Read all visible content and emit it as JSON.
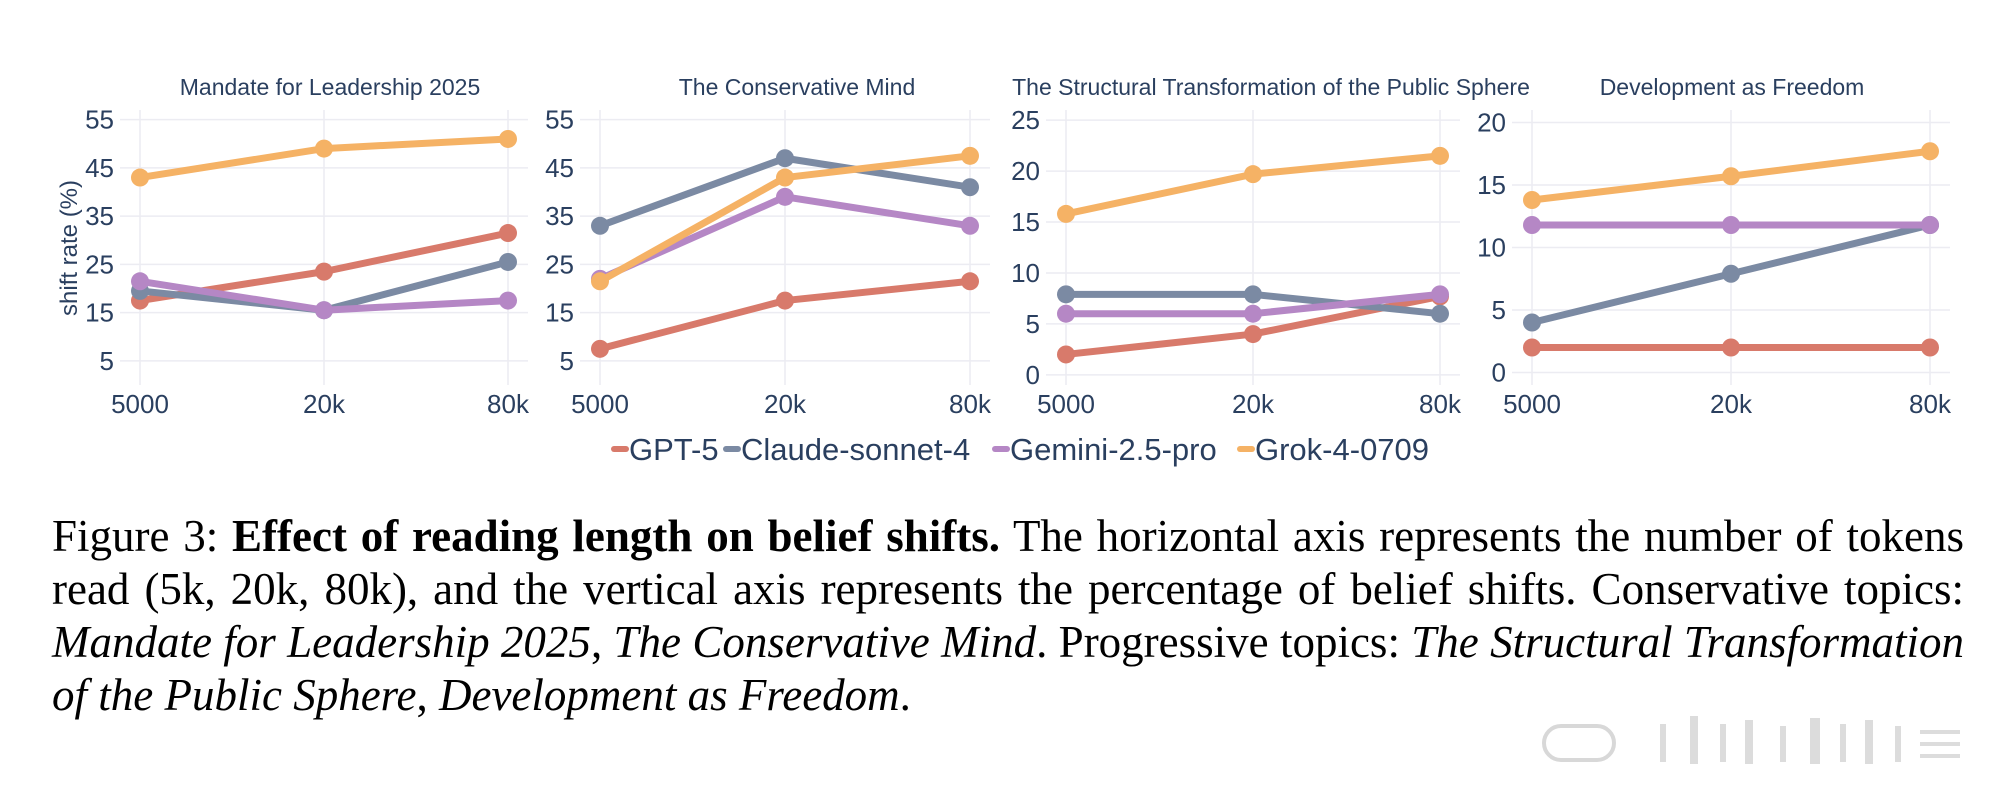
{
  "colors": {
    "GPT-5": "#d87a6b",
    "Claude-sonnet-4": "#7b8aa3",
    "Gemini-2.5-pro": "#b587c5",
    "Grok-4-0709": "#f5b265",
    "grid": "#ececf2",
    "axis_text": "#2a3f5f"
  },
  "chart_data": [
    {
      "type": "line",
      "title": "Mandate for Leadership 2025",
      "ylabel": "shift rate (%)",
      "x": [
        5000,
        20000,
        80000
      ],
      "x_tick_labels": [
        "5000",
        "20k",
        "80k"
      ],
      "y_ticks": [
        5,
        15,
        25,
        35,
        45,
        55
      ],
      "ylim": [
        0,
        57
      ],
      "series": [
        {
          "name": "GPT-5",
          "values": [
            17.5,
            23.5,
            31.5
          ]
        },
        {
          "name": "Claude-sonnet-4",
          "values": [
            19.5,
            15.5,
            25.5
          ]
        },
        {
          "name": "Gemini-2.5-pro",
          "values": [
            21.5,
            15.5,
            17.5
          ]
        },
        {
          "name": "Grok-4-0709",
          "values": [
            43,
            49,
            51
          ]
        }
      ]
    },
    {
      "type": "line",
      "title": "The Conservative Mind",
      "x": [
        5000,
        20000,
        80000
      ],
      "x_tick_labels": [
        "5000",
        "20k",
        "80k"
      ],
      "y_ticks": [
        5,
        15,
        25,
        35,
        45,
        55
      ],
      "ylim": [
        0,
        57
      ],
      "series": [
        {
          "name": "GPT-5",
          "values": [
            7.5,
            17.5,
            21.5
          ]
        },
        {
          "name": "Claude-sonnet-4",
          "values": [
            33,
            47,
            41
          ]
        },
        {
          "name": "Gemini-2.5-pro",
          "values": [
            22,
            39,
            33
          ]
        },
        {
          "name": "Grok-4-0709",
          "values": [
            21.5,
            43,
            47.5
          ]
        }
      ]
    },
    {
      "type": "line",
      "title": "The Structural Transformation of the Public Sphere",
      "x": [
        5000,
        20000,
        80000
      ],
      "x_tick_labels": [
        "5000",
        "20k",
        "80k"
      ],
      "y_ticks": [
        0,
        5,
        10,
        15,
        20,
        25
      ],
      "ylim": [
        -1,
        26
      ],
      "series": [
        {
          "name": "GPT-5",
          "values": [
            2,
            4,
            7.7
          ]
        },
        {
          "name": "Claude-sonnet-4",
          "values": [
            7.9,
            7.9,
            6
          ]
        },
        {
          "name": "Gemini-2.5-pro",
          "values": [
            6,
            6,
            7.9
          ]
        },
        {
          "name": "Grok-4-0709",
          "values": [
            15.8,
            19.7,
            21.5
          ]
        }
      ]
    },
    {
      "type": "line",
      "title": "Development as Freedom",
      "x": [
        5000,
        20000,
        80000
      ],
      "x_tick_labels": [
        "5000",
        "20k",
        "80k"
      ],
      "y_ticks": [
        0,
        5,
        10,
        15,
        20
      ],
      "ylim": [
        -1,
        21
      ],
      "series": [
        {
          "name": "GPT-5",
          "values": [
            2,
            2,
            2
          ]
        },
        {
          "name": "Claude-sonnet-4",
          "values": [
            4,
            7.9,
            11.8
          ]
        },
        {
          "name": "Gemini-2.5-pro",
          "values": [
            11.8,
            11.8,
            11.8
          ]
        },
        {
          "name": "Grok-4-0709",
          "values": [
            13.8,
            15.7,
            17.7
          ]
        }
      ]
    }
  ],
  "legend": [
    "GPT-5",
    "Claude-sonnet-4",
    "Gemini-2.5-pro",
    "Grok-4-0709"
  ],
  "caption": {
    "label": "Figure 3:",
    "title": "Effect of reading length on belief shifts.",
    "text1": "The horizontal axis represents the number of tokens read (5k, 20k, 80k), and the vertical axis represents the percentage of belief shifts. Conservative topics:",
    "cons1": "Mandate for Leadership 2025",
    "sep1": ",",
    "cons2": "The Conservative Mind",
    "text2": ". Progressive topics:",
    "prog1": "The Structural Transformation of the Public Sphere",
    "sep2": ",",
    "prog2": "Development as Freedom",
    "end": "."
  }
}
